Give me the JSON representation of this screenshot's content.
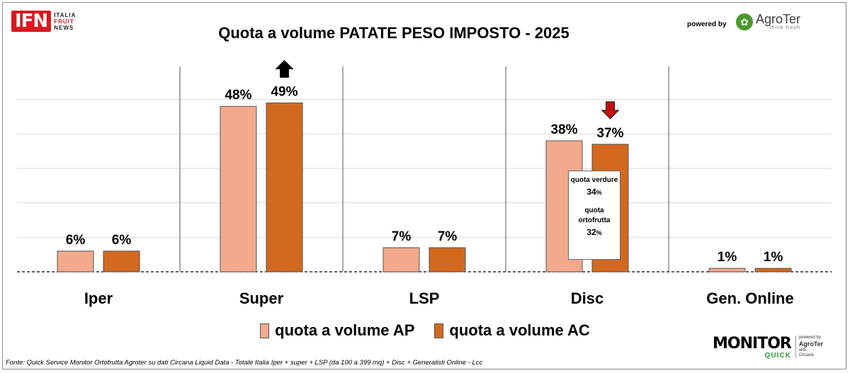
{
  "header": {
    "logo_mark": "IFN",
    "logo_words": [
      "ITALIA",
      "FRUIT",
      "NEWS"
    ],
    "powered_by": "powered by",
    "agroter_name": "AgroTer",
    "agroter_tag": "think fresh"
  },
  "chart_data": {
    "type": "bar",
    "title": "Quota a volume PATATE PESO IMPOSTO - 2025",
    "categories": [
      "Iper",
      "Super",
      "LSP",
      "Disc",
      "Gen. Online"
    ],
    "series": [
      {
        "name": "quota a volume AP",
        "values": [
          6,
          48,
          7,
          38,
          1
        ],
        "labels": [
          "6%",
          "48%",
          "7%",
          "38%",
          "1%"
        ],
        "color": "#f2a98c"
      },
      {
        "name": "quota a volume AC",
        "values": [
          6,
          49,
          7,
          37,
          1
        ],
        "labels": [
          "6%",
          "49%",
          "7%",
          "37%",
          "1%"
        ],
        "color": "#d2691e"
      }
    ],
    "ylim": [
      0,
      60
    ],
    "grid": true,
    "trend_arrows": [
      {
        "category": "Super",
        "direction": "up",
        "color": "#000000"
      },
      {
        "category": "Disc",
        "direction": "down",
        "color": "#c0100f"
      }
    ],
    "legend_position": "bottom"
  },
  "callout": {
    "label1": "quota verdure",
    "value1": "34",
    "label2": "quota ortofrutta",
    "value2": "32",
    "unit": "%"
  },
  "footer": {
    "source": "Fonte: Quick Service Monitor Ortofrutta Agroter su dati Circana Liquid Data - Totale Italia Iper + super + LSP (da 100 a 399 mq) + Disc + Generalisti Online - Lcc",
    "monitor_word": "MONITOR",
    "monitor_quick": "QUICK",
    "side_powered": "powered by",
    "side_brand": "AgroTer",
    "side_with": "with",
    "side_partner": "Circana."
  }
}
